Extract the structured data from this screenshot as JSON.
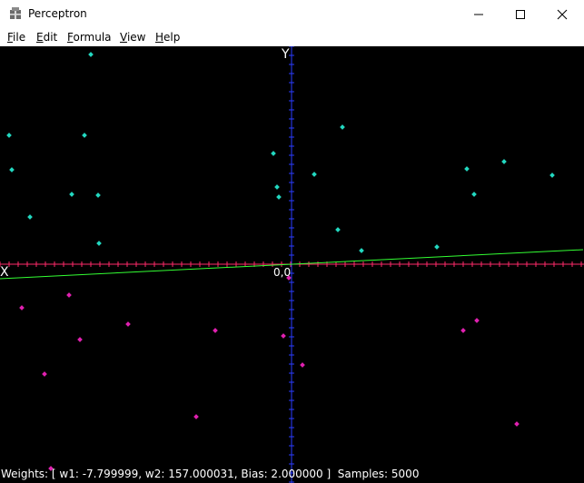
{
  "window": {
    "title": "Perceptron",
    "app_icon": "perceptron-app-icon",
    "controls": {
      "minimize_icon": "minimize-icon",
      "maximize_icon": "maximize-icon",
      "close_icon": "close-icon"
    }
  },
  "menu": [
    "File",
    "Edit",
    "Formula",
    "View",
    "Help"
  ],
  "plot": {
    "x_axis_label": "X",
    "y_axis_label": "Y",
    "origin_label": "0,0",
    "background": "#000000",
    "x_axis_color": "#ff2a6a",
    "y_axis_color": "#2a3cff",
    "boundary_color": "#33ff33",
    "class_a_color": "#22d8c0",
    "class_b_color": "#e020b0"
  },
  "chart_data": {
    "type": "scatter",
    "xlim": [
      -321,
      321
    ],
    "ylim": [
      -240,
      240
    ],
    "series": [
      {
        "values_label": "above",
        "points": [
          [
            -221,
            231
          ],
          [
            -311,
            142
          ],
          [
            -228,
            142
          ],
          [
            -308,
            104
          ],
          [
            -242,
            77
          ],
          [
            -288,
            52
          ],
          [
            -213,
            76
          ],
          [
            -212,
            23
          ],
          [
            -20,
            122
          ],
          [
            56,
            151
          ],
          [
            -16,
            85
          ],
          [
            -14,
            74
          ],
          [
            25,
            99
          ],
          [
            51,
            38
          ],
          [
            77,
            15
          ],
          [
            160,
            19
          ],
          [
            193,
            105
          ],
          [
            234,
            113
          ],
          [
            201,
            77
          ],
          [
            287,
            98
          ]
        ]
      },
      {
        "values_label": "below",
        "points": [
          [
            -297,
            -48
          ],
          [
            -245,
            -34
          ],
          [
            -233,
            -83
          ],
          [
            -180,
            -66
          ],
          [
            -272,
            -121
          ],
          [
            -84,
            -73
          ],
          [
            -9,
            -79
          ],
          [
            -3,
            -15
          ],
          [
            12,
            -111
          ],
          [
            -265,
            -225
          ],
          [
            -105,
            -168
          ],
          [
            189,
            -73
          ],
          [
            204,
            -62
          ],
          [
            248,
            -176
          ]
        ]
      }
    ],
    "boundary_line": {
      "x": [
        -321,
        321
      ],
      "y": [
        -16,
        16
      ]
    }
  },
  "status": {
    "text": "Weights: [ w1: -7.799999, w2: 157.000031, Bias: 2.000000 ]  Samples: 5000"
  }
}
